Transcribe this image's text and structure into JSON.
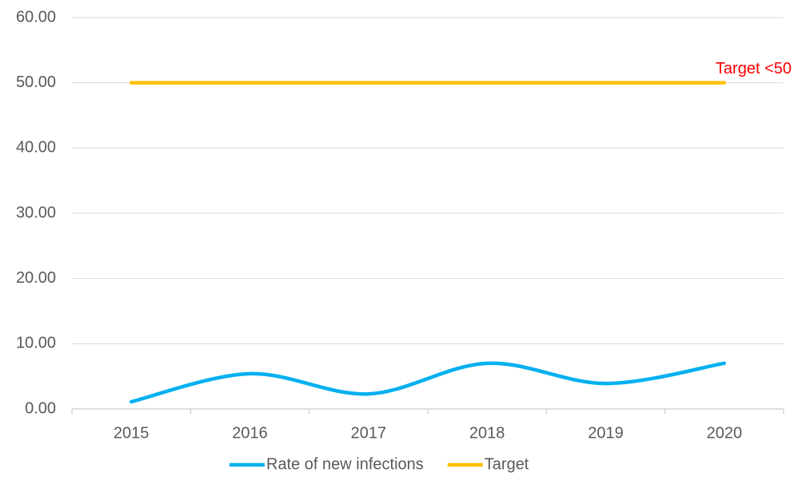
{
  "chart_data": {
    "type": "line",
    "smooth": true,
    "categories": [
      "2015",
      "2016",
      "2017",
      "2018",
      "2019",
      "2020"
    ],
    "series": [
      {
        "name": "Rate of new infections",
        "color": "#00b0f0",
        "values": [
          1.1,
          5.4,
          2.3,
          7.0,
          3.9,
          7.0
        ]
      },
      {
        "name": "Target",
        "color": "#ffc000",
        "values": [
          50,
          50,
          50,
          50,
          50,
          50
        ]
      }
    ],
    "annotations": [
      {
        "text": "Target <50",
        "color": "#ff0000"
      }
    ],
    "ylim": [
      0,
      60
    ],
    "yticks": [
      {
        "value": 0,
        "label": "0.00"
      },
      {
        "value": 10,
        "label": "10.00"
      },
      {
        "value": 20,
        "label": "20.00"
      },
      {
        "value": 30,
        "label": "30.00"
      },
      {
        "value": 40,
        "label": "40.00"
      },
      {
        "value": 50,
        "label": "50.00"
      },
      {
        "value": 60,
        "label": "60.00"
      }
    ],
    "grid": true,
    "legend": "bottom"
  }
}
